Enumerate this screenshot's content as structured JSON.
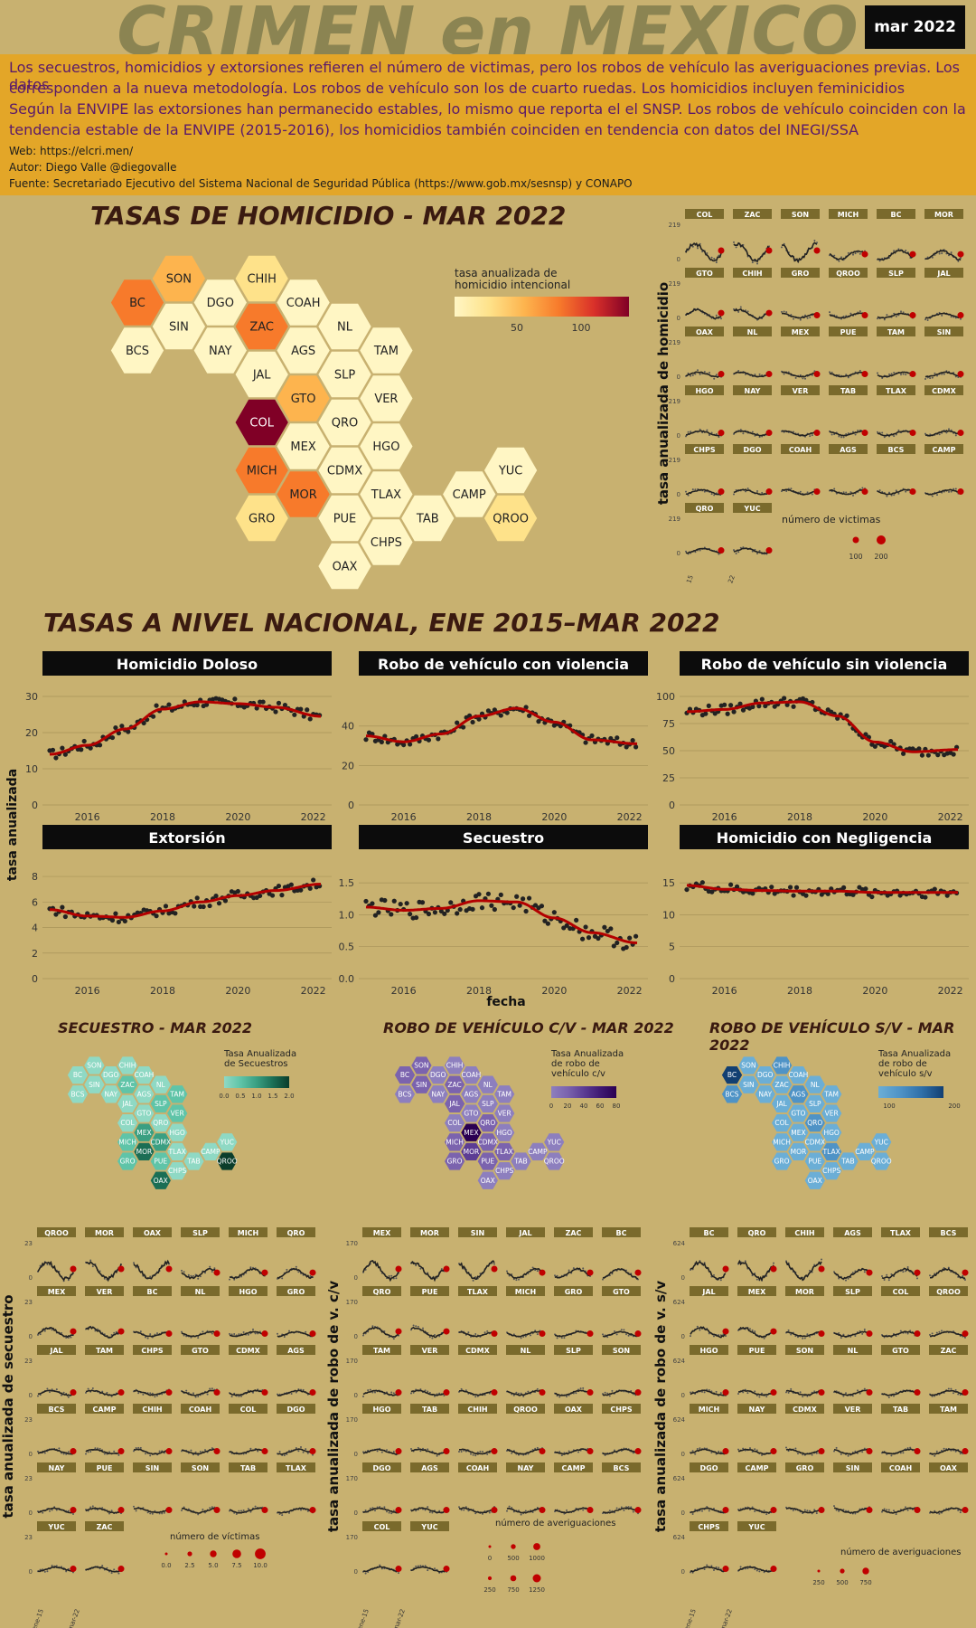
{
  "header": {
    "title": "CRIMEN en MEXICO",
    "date": "mar 2022",
    "lines": [
      "Los secuestros, homicidios y extorsiones refieren el número de victimas, pero los robos de vehículo las averiguaciones previas. Los datos",
      "corresponden a la nueva metodología. Los robos de vehículo son los de cuarto ruedas. Los homicidios incluyen feminicidios",
      "Según la ENVIPE las extorsiones han permanecido estables, lo mismo que reporta el el SNSP. Los robos de vehículo coinciden con la",
      "tendencia estable de la ENVIPE (2015-2016), los homicidios también coinciden en tendencia con datos del INEGI/SSA"
    ],
    "web": "Web: https://elcri.men/",
    "author": "Autor: Diego Valle @diegovalle",
    "source": "Fuente: Secretariado Ejecutivo del Sistema Nacional de Seguridad Pública (https://www.gob.mx/sesnsp) y CONAPO"
  },
  "hom_map": {
    "title": "TASAS DE HOMICIDIO - MAR 2022",
    "legend_title": [
      "tasa anualizada de",
      "homicidio intencional"
    ],
    "legend_ticks": [
      "50",
      "100"
    ],
    "colors": [
      "#fff6c4",
      "#fee28a",
      "#fdb44e",
      "#f77a2b",
      "#d9302a",
      "#800026"
    ],
    "states": [
      [
        "SON",
        2
      ],
      [
        "CHIH",
        1
      ],
      [
        "BC",
        3
      ],
      [
        "DGO",
        0
      ],
      [
        "COAH",
        0
      ],
      [
        "SIN",
        0
      ],
      [
        "ZAC",
        3
      ],
      [
        "NL",
        0
      ],
      [
        "BCS",
        0
      ],
      [
        "NAY",
        0
      ],
      [
        "AGS",
        0
      ],
      [
        "TAM",
        0
      ],
      [
        "JAL",
        0
      ],
      [
        "SLP",
        0
      ],
      [
        "GTO",
        2
      ],
      [
        "VER",
        0
      ],
      [
        "COL",
        5
      ],
      [
        "QRO",
        0
      ],
      [
        "MEX",
        0
      ],
      [
        "HGO",
        0
      ],
      [
        "MICH",
        3
      ],
      [
        "CDMX",
        0
      ],
      [
        "YUC",
        0
      ],
      [
        "MOR",
        3
      ],
      [
        "TLAX",
        0
      ],
      [
        "CAMP",
        0
      ],
      [
        "GRO",
        1
      ],
      [
        "PUE",
        0
      ],
      [
        "TAB",
        0
      ],
      [
        "QROO",
        1
      ],
      [
        "CHPS",
        0
      ],
      [
        "OAX",
        0
      ]
    ]
  },
  "nat": {
    "title": "TASAS A NIVEL NACIONAL, ENE 2015–MAR 2022",
    "ylabel": "tasa anualizada",
    "xlabel": "fecha"
  },
  "small1": {
    "ylabel": "tasa anualizada de homicidio",
    "ymax": "219",
    "ymin": "0",
    "size_title": "número de victimas",
    "size_labels": [
      "100",
      "200"
    ],
    "xticks": [
      "ene-15",
      "mar-22"
    ],
    "grid": [
      "COL",
      "ZAC",
      "SON",
      "MICH",
      "BC",
      "MOR",
      "GTO",
      "CHIH",
      "GRO",
      "QROO",
      "SLP",
      "JAL",
      "OAX",
      "NL",
      "MEX",
      "PUE",
      "TAM",
      "SIN",
      "HGO",
      "NAY",
      "VER",
      "TAB",
      "TLAX",
      "CDMX",
      "CHPS",
      "DGO",
      "COAH",
      "AGS",
      "BCS",
      "CAMP",
      "QRO",
      "YUC"
    ]
  },
  "sec_map": {
    "title": "SECUESTRO - MAR 2022",
    "legend_title": [
      "Tasa Anualizada",
      "de Secuestros"
    ],
    "legend_ticks": [
      "0.0",
      "0.5",
      "1.0",
      "1.5",
      "2.0"
    ],
    "colors": [
      "#8fd9c4",
      "#5fc4a8",
      "#3a9f82",
      "#1b6e55",
      "#0b3d2b"
    ],
    "vals": {
      "QROO": 4,
      "MOR": 3,
      "OAX": 3,
      "MEX": 2,
      "CDMX": 2,
      "PUE": 1,
      "VER": 1,
      "SLP": 1,
      "MICH": 1,
      "GRO": 1,
      "ZAC": 1,
      "TAM": 1
    }
  },
  "rcv_map": {
    "title": "ROBO DE VEHÍCULO C/V - MAR 2022",
    "legend_title": [
      "Tasa Anualizada",
      "de robo de",
      "vehículo c/v"
    ],
    "legend_ticks": [
      "0",
      "20",
      "40",
      "60",
      "80"
    ],
    "colors": [
      "#8d7fbe",
      "#7b63ae",
      "#5c3d94",
      "#401a73",
      "#2a0052"
    ],
    "vals": {
      "MEX": 4,
      "MOR": 2,
      "SIN": 1,
      "JAL": 1,
      "ZAC": 1,
      "BC": 1,
      "GRO": 1,
      "QRO": 1,
      "PUE": 1,
      "TLAX": 1,
      "MICH": 1,
      "SON": 1,
      "CDMX": 1
    }
  },
  "rsv_map": {
    "title": "ROBO DE VEHÍCULO S/V - MAR 2022",
    "legend_title": [
      "Tasa Anualizada",
      "de robo de",
      "vehículo s/v"
    ],
    "legend_ticks": [
      "100",
      "200"
    ],
    "colors": [
      "#6baed6",
      "#4f93c6",
      "#2f6fa8",
      "#123f72"
    ],
    "vals": {
      "BC": 3,
      "QRO": 1,
      "CHIH": 1,
      "AGS": 1,
      "TLAX": 1,
      "BCS": 1
    }
  },
  "small_sec": {
    "ylabel": "tasa anualizada de secuestro",
    "ymax": "23",
    "ymin": "0",
    "size_title": "número de víctimas",
    "size_labels": [
      "0.0",
      "2.5",
      "5.0",
      "7.5",
      "10.0"
    ],
    "xticks": [
      "ene-15",
      "mar-22"
    ],
    "grid": [
      "QROO",
      "MOR",
      "OAX",
      "SLP",
      "MICH",
      "QRO",
      "MEX",
      "VER",
      "BC",
      "NL",
      "HGO",
      "GRO",
      "JAL",
      "TAM",
      "CHPS",
      "GTO",
      "CDMX",
      "AGS",
      "BCS",
      "CAMP",
      "CHIH",
      "COAH",
      "COL",
      "DGO",
      "NAY",
      "PUE",
      "SIN",
      "SON",
      "TAB",
      "TLAX",
      "YUC",
      "ZAC"
    ]
  },
  "small_rcv": {
    "ylabel": "tasa anualizada de robo de v. c/v",
    "ymax": "170",
    "ymin": "0",
    "size_title": "número de averiguaciones",
    "size_labels": [
      "0",
      "500",
      "1000",
      "250",
      "750",
      "1250"
    ],
    "xticks": [
      "ene-15",
      "mar-22"
    ],
    "grid": [
      "MEX",
      "MOR",
      "SIN",
      "JAL",
      "ZAC",
      "BC",
      "QRO",
      "PUE",
      "TLAX",
      "MICH",
      "GRO",
      "GTO",
      "TAM",
      "VER",
      "CDMX",
      "NL",
      "SLP",
      "SON",
      "HGO",
      "TAB",
      "CHIH",
      "QROO",
      "OAX",
      "CHPS",
      "DGO",
      "AGS",
      "COAH",
      "NAY",
      "CAMP",
      "BCS",
      "COL",
      "YUC"
    ]
  },
  "small_rsv": {
    "ylabel": "tasa anualizada de robo de v. s/v",
    "ymax": "624",
    "ymin": "0",
    "size_title": "número de averiguaciones",
    "size_labels": [
      "250",
      "500",
      "750"
    ],
    "xticks": [
      "ene-15",
      "mar-22"
    ],
    "grid": [
      "BC",
      "QRO",
      "CHIH",
      "AGS",
      "TLAX",
      "BCS",
      "JAL",
      "MEX",
      "MOR",
      "SLP",
      "COL",
      "QROO",
      "HGO",
      "PUE",
      "SON",
      "NL",
      "GTO",
      "ZAC",
      "MICH",
      "NAY",
      "CDMX",
      "VER",
      "TAB",
      "TAM",
      "DGO",
      "CAMP",
      "GRO",
      "SIN",
      "COAH",
      "OAX",
      "CHPS",
      "YUC"
    ]
  },
  "chart_data": [
    {
      "type": "scatter",
      "title": "Homicidio Doloso",
      "x_range": [
        2015,
        2022.2
      ],
      "xticks": [
        "2016",
        "2018",
        "2020",
        "2022"
      ],
      "yticks": [
        "0",
        "10",
        "20",
        "30"
      ],
      "ylim": [
        0,
        30
      ],
      "trend_x": [
        2015,
        2016,
        2017,
        2018,
        2019,
        2020,
        2021,
        2022.2
      ],
      "trend_y": [
        14,
        16.5,
        21,
        26.5,
        28.5,
        28,
        27,
        24.5
      ]
    },
    {
      "type": "scatter",
      "title": "Robo de vehículo con violencia",
      "x_range": [
        2015,
        2022.2
      ],
      "xticks": [
        "2016",
        "2018",
        "2020",
        "2022"
      ],
      "yticks": [
        "0",
        "20",
        "40"
      ],
      "ylim": [
        0,
        55
      ],
      "trend_x": [
        2015,
        2016,
        2017,
        2018,
        2019,
        2020,
        2021,
        2022.2
      ],
      "trend_y": [
        35,
        32,
        36,
        45,
        49,
        42,
        33,
        31
      ]
    },
    {
      "type": "scatter",
      "title": "Robo de vehículo sin violencia",
      "x_range": [
        2015,
        2022.2
      ],
      "xticks": [
        "2016",
        "2018",
        "2020",
        "2022"
      ],
      "yticks": [
        "0",
        "25",
        "50",
        "75",
        "100"
      ],
      "ylim": [
        0,
        100
      ],
      "trend_x": [
        2015,
        2016,
        2017,
        2018,
        2019,
        2020,
        2021,
        2022.2
      ],
      "trend_y": [
        86,
        88,
        94,
        95,
        82,
        58,
        49,
        51
      ]
    },
    {
      "type": "scatter",
      "title": "Extorsión",
      "x_range": [
        2015,
        2022.2
      ],
      "xticks": [
        "2016",
        "2018",
        "2020",
        "2022"
      ],
      "yticks": [
        "0",
        "2",
        "4",
        "6",
        "8"
      ],
      "ylim": [
        0,
        8.5
      ],
      "trend_x": [
        2015,
        2016,
        2017,
        2018,
        2019,
        2020,
        2021,
        2022.2
      ],
      "trend_y": [
        5.4,
        4.9,
        4.8,
        5.3,
        6.0,
        6.5,
        6.9,
        7.4
      ]
    },
    {
      "type": "scatter",
      "title": "Secuestro",
      "x_range": [
        2015,
        2022.2
      ],
      "xticks": [
        "2016",
        "2018",
        "2020",
        "2022"
      ],
      "yticks": [
        "0.0",
        "0.5",
        "1.0",
        "1.5"
      ],
      "ylim": [
        0,
        1.7
      ],
      "trend_x": [
        2015,
        2016,
        2017,
        2018,
        2019,
        2020,
        2021,
        2022.2
      ],
      "trend_y": [
        1.12,
        1.07,
        1.1,
        1.22,
        1.2,
        0.95,
        0.72,
        0.56
      ]
    },
    {
      "type": "scatter",
      "title": "Homicidio con Negligencia",
      "x_range": [
        2015,
        2022.2
      ],
      "xticks": [
        "2016",
        "2018",
        "2020",
        "2022"
      ],
      "yticks": [
        "0",
        "5",
        "10",
        "15"
      ],
      "ylim": [
        0,
        17
      ],
      "trend_x": [
        2015,
        2016,
        2017,
        2018,
        2019,
        2020,
        2021,
        2022.2
      ],
      "trend_y": [
        14.6,
        14.0,
        13.8,
        13.7,
        13.7,
        13.5,
        13.5,
        13.5
      ]
    }
  ]
}
